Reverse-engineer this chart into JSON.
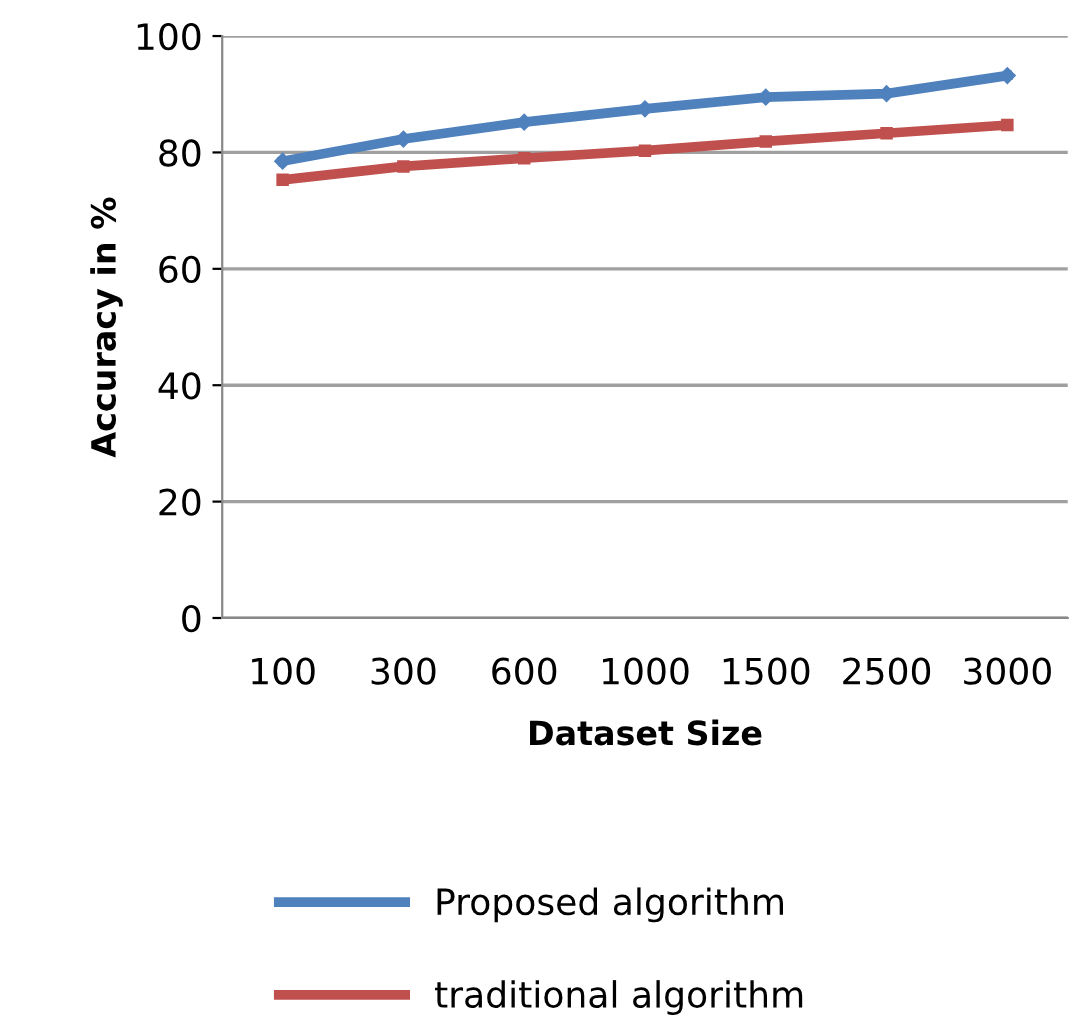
{
  "chart_data": {
    "type": "line",
    "xlabel": "Dataset Size",
    "ylabel": "Accuracy in %",
    "categories": [
      "100",
      "300",
      "600",
      "1000",
      "1500",
      "2500",
      "3000"
    ],
    "series": [
      {
        "name": "Proposed algorithm",
        "color": "#4f81bd",
        "marker": "diamond",
        "values": [
          78.5,
          82.3,
          85.2,
          87.5,
          89.5,
          90.1,
          93.2
        ]
      },
      {
        "name": "traditional algorithm",
        "color": "#c0504d",
        "marker": "square",
        "values": [
          75.3,
          77.6,
          79.0,
          80.3,
          81.9,
          83.3,
          84.7
        ]
      }
    ],
    "ylim": [
      0,
      100
    ],
    "yticks": [
      0,
      20,
      40,
      60,
      80,
      100
    ],
    "grid": "y",
    "legend": "bottom",
    "line_style": "solid"
  }
}
